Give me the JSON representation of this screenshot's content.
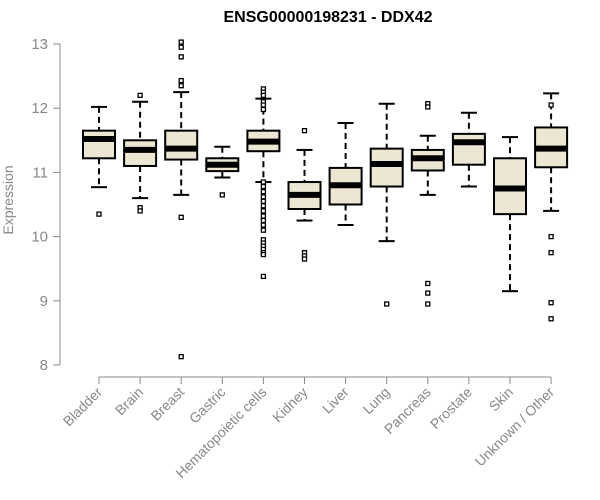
{
  "chart_data": {
    "type": "boxplot",
    "title": "ENSG00000198231 - DDX42",
    "xlabel": "",
    "ylabel": "Expression",
    "ylim": [
      8,
      13
    ],
    "yticks": [
      8,
      9,
      10,
      11,
      12,
      13
    ],
    "categories": [
      "Bladder",
      "Brain",
      "Breast",
      "Gastric",
      "Hematopoietic cells",
      "Kidney",
      "Liver",
      "Lung",
      "Pancreas",
      "Prostate",
      "Skin",
      "Unknown / Other"
    ],
    "boxes": [
      {
        "whisker_low": 10.77,
        "q1": 11.22,
        "median": 11.52,
        "q3": 11.65,
        "whisker_high": 12.02,
        "outliers": [
          10.35
        ]
      },
      {
        "whisker_low": 10.6,
        "q1": 11.1,
        "median": 11.35,
        "q3": 11.5,
        "whisker_high": 12.1,
        "outliers": [
          12.2,
          10.45,
          10.4
        ]
      },
      {
        "whisker_low": 10.65,
        "q1": 11.2,
        "median": 11.37,
        "q3": 11.65,
        "whisker_high": 12.25,
        "outliers": [
          13.03,
          12.95,
          12.8,
          12.43,
          12.35,
          10.3,
          8.13
        ]
      },
      {
        "whisker_low": 10.92,
        "q1": 11.02,
        "median": 11.12,
        "q3": 11.22,
        "whisker_high": 11.4,
        "outliers": [
          10.65
        ]
      },
      {
        "whisker_low": 10.85,
        "q1": 11.33,
        "median": 11.48,
        "q3": 11.65,
        "whisker_high": 12.15,
        "outliers": [
          12.3,
          12.25,
          12.2,
          12.1,
          12.05,
          11.98,
          10.85,
          10.78,
          10.7,
          10.62,
          10.55,
          10.48,
          10.4,
          10.32,
          10.25,
          10.18,
          10.1,
          9.95,
          9.9,
          9.85,
          9.8,
          9.75,
          9.72,
          9.38
        ]
      },
      {
        "whisker_low": 10.25,
        "q1": 10.43,
        "median": 10.65,
        "q3": 10.85,
        "whisker_high": 11.35,
        "outliers": [
          11.65,
          9.75,
          9.7,
          9.65
        ]
      },
      {
        "whisker_low": 10.18,
        "q1": 10.5,
        "median": 10.8,
        "q3": 11.07,
        "whisker_high": 11.77,
        "outliers": []
      },
      {
        "whisker_low": 9.93,
        "q1": 10.78,
        "median": 11.13,
        "q3": 11.37,
        "whisker_high": 12.07,
        "outliers": [
          8.95
        ]
      },
      {
        "whisker_low": 10.65,
        "q1": 11.03,
        "median": 11.22,
        "q3": 11.35,
        "whisker_high": 11.57,
        "outliers": [
          12.07,
          12.02,
          9.27,
          9.12,
          8.95
        ]
      },
      {
        "whisker_low": 10.78,
        "q1": 11.12,
        "median": 11.47,
        "q3": 11.6,
        "whisker_high": 11.93,
        "outliers": []
      },
      {
        "whisker_low": 9.15,
        "q1": 10.35,
        "median": 10.75,
        "q3": 11.22,
        "whisker_high": 11.55,
        "outliers": []
      },
      {
        "whisker_low": 10.4,
        "q1": 11.08,
        "median": 11.37,
        "q3": 11.7,
        "whisker_high": 12.23,
        "outliers": [
          12.05,
          10.0,
          9.75,
          8.97,
          8.72
        ]
      }
    ],
    "colors": {
      "box_fill": "#ece7d2",
      "axis": "#888888"
    }
  }
}
